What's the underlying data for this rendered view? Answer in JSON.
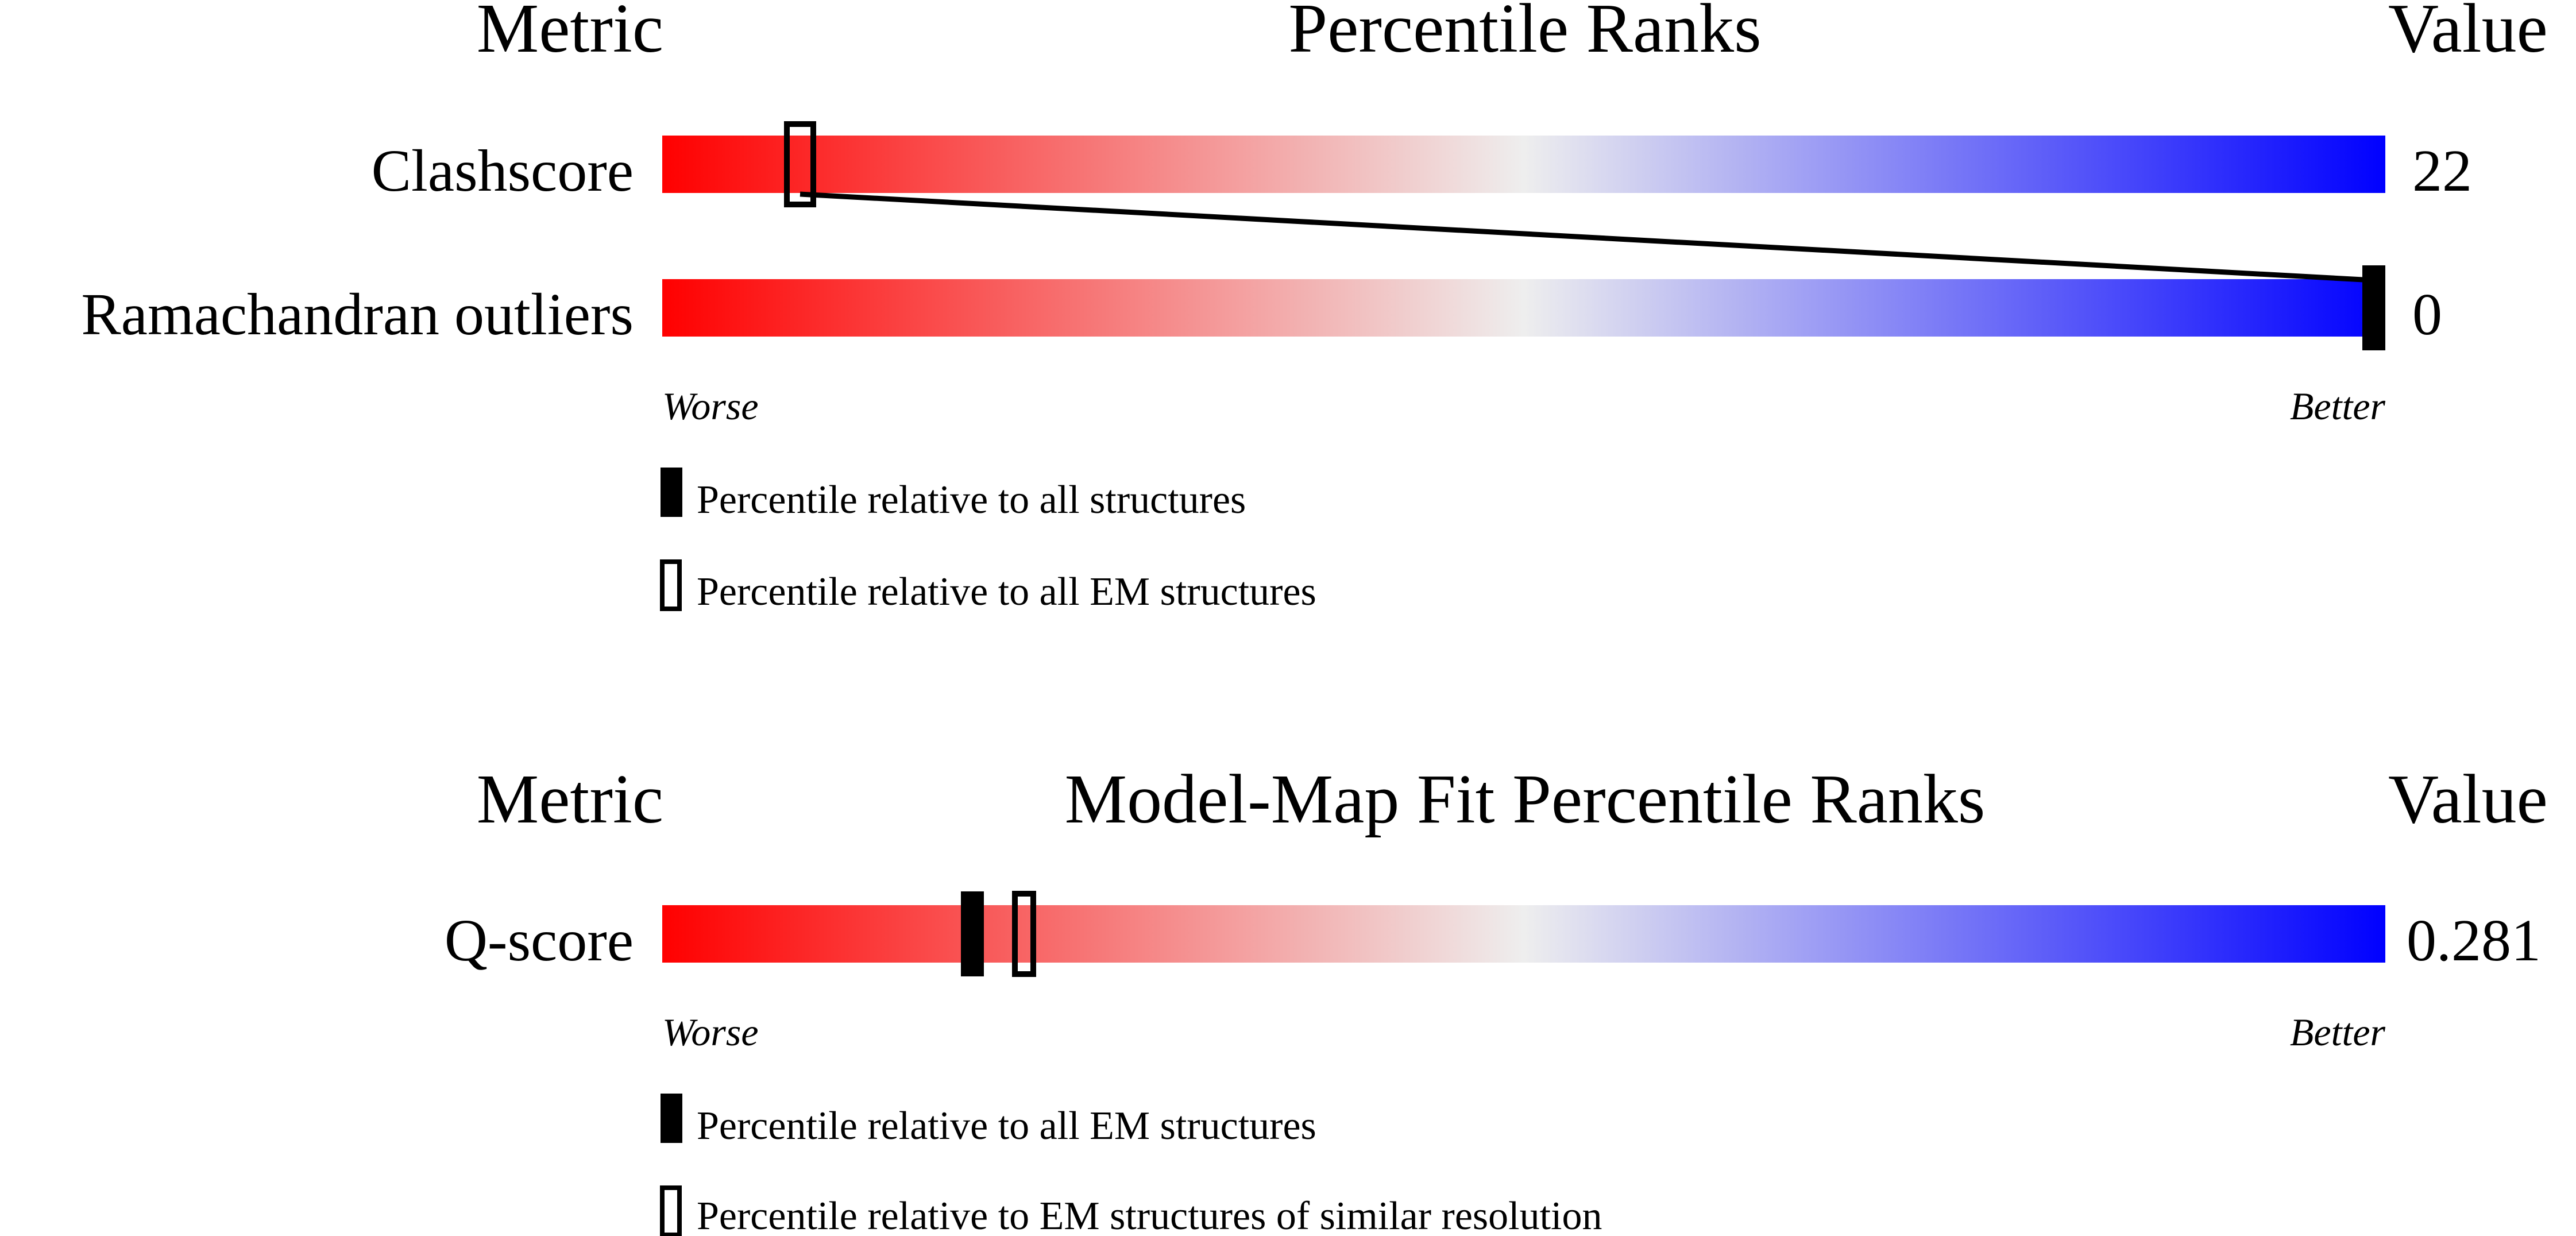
{
  "chart_data": [
    {
      "type": "percentile-slider",
      "headers": {
        "metric": "Metric",
        "title": "Percentile Ranks",
        "value": "Value"
      },
      "rows": [
        {
          "metric": "Clashscore",
          "value": "22",
          "percentile_all": 100,
          "percentile_em": 8
        },
        {
          "metric": "Ramachandran outliers",
          "value": "0",
          "percentile_all": 100,
          "percentile_em": null
        }
      ],
      "scale": {
        "min": 0,
        "max": 100,
        "left_label": "Worse",
        "right_label": "Better"
      },
      "colors": {
        "worse": "#ff0000",
        "middle": "#eeeeee",
        "better": "#0000ff",
        "marker": "#000000"
      },
      "legend": [
        {
          "style": "filled",
          "label": "Percentile relative to all structures"
        },
        {
          "style": "hollow",
          "label": "Percentile relative to all EM structures"
        }
      ]
    },
    {
      "type": "percentile-slider",
      "headers": {
        "metric": "Metric",
        "title": "Model-Map Fit Percentile Ranks",
        "value": "Value"
      },
      "rows": [
        {
          "metric": "Q-score",
          "value": "0.281",
          "percentile_all": 18,
          "percentile_em": 21
        }
      ],
      "scale": {
        "min": 0,
        "max": 100,
        "left_label": "Worse",
        "right_label": "Better"
      },
      "colors": {
        "worse": "#ff0000",
        "middle": "#eeeeee",
        "better": "#0000ff",
        "marker": "#000000"
      },
      "legend": [
        {
          "style": "filled",
          "label": "Percentile relative to all EM structures"
        },
        {
          "style": "hollow",
          "label": "Percentile relative to EM structures of similar resolution"
        }
      ]
    }
  ]
}
